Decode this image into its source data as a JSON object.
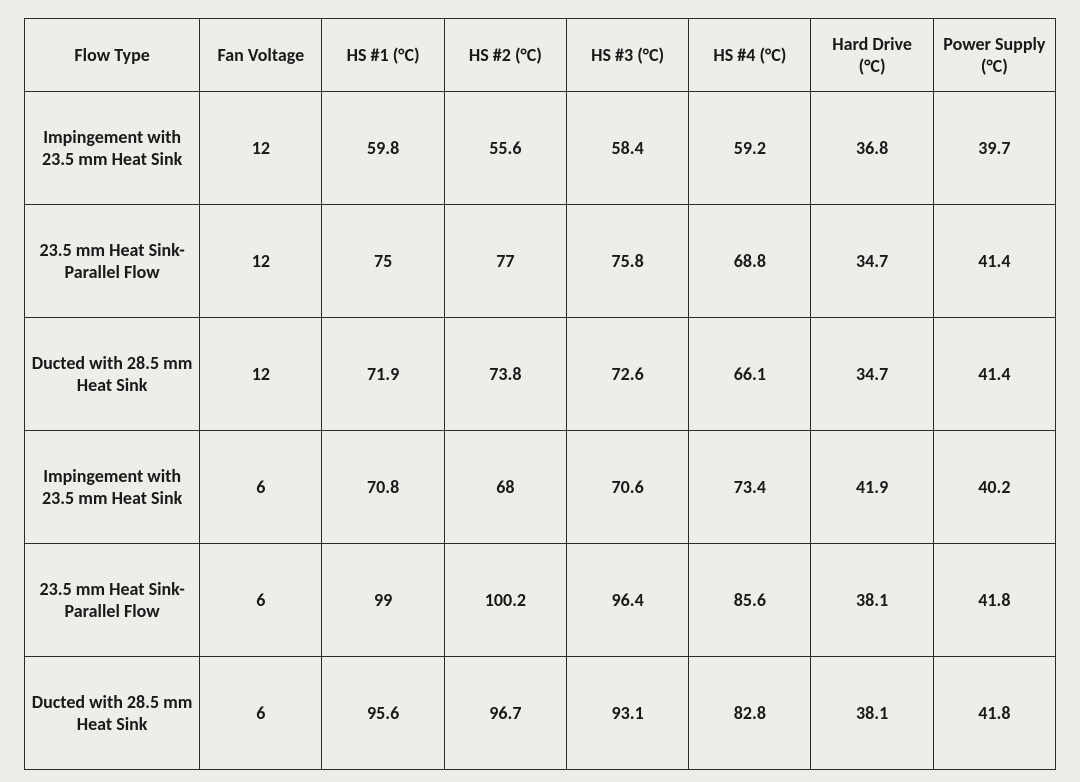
{
  "table": {
    "background_color": "#eeede9",
    "border_color": "#2b2b2b",
    "text_color": "#1a1a1a",
    "font_family": "Calibri",
    "header_fontsize": 18,
    "cell_fontsize": 18,
    "font_weight": "bold",
    "column_widths_pct": [
      17,
      11.86,
      11.86,
      11.86,
      11.86,
      11.86,
      11.86,
      11.86
    ],
    "columns": [
      "Flow Type",
      "Fan Voltage",
      "HS #1 (°C)",
      "HS #2 (°C)",
      "HS #3 (°C)",
      "HS #4 (°C)",
      "Hard Drive (°C)",
      "Power Supply (°C)"
    ],
    "rows": [
      {
        "flow": "Impingement with 23.5 mm Heat Sink",
        "v": "12",
        "hs1": "59.8",
        "hs2": "55.6",
        "hs3": "58.4",
        "hs4": "59.2",
        "hd": "36.8",
        "ps": "39.7"
      },
      {
        "flow": "23.5 mm Heat Sink-Parallel Flow",
        "v": "12",
        "hs1": "75",
        "hs2": "77",
        "hs3": "75.8",
        "hs4": "68.8",
        "hd": "34.7",
        "ps": "41.4"
      },
      {
        "flow": "Ducted with 28.5 mm Heat Sink",
        "v": "12",
        "hs1": "71.9",
        "hs2": "73.8",
        "hs3": "72.6",
        "hs4": "66.1",
        "hd": "34.7",
        "ps": "41.4"
      },
      {
        "flow": "Impingement with 23.5 mm Heat Sink",
        "v": "6",
        "hs1": "70.8",
        "hs2": "68",
        "hs3": "70.6",
        "hs4": "73.4",
        "hd": "41.9",
        "ps": "40.2"
      },
      {
        "flow": "23.5 mm Heat Sink-Parallel Flow",
        "v": "6",
        "hs1": "99",
        "hs2": "100.2",
        "hs3": "96.4",
        "hs4": "85.6",
        "hd": "38.1",
        "ps": "41.8"
      },
      {
        "flow": "Ducted with 28.5 mm Heat Sink",
        "v": "6",
        "hs1": "95.6",
        "hs2": "96.7",
        "hs3": "93.1",
        "hs4": "82.8",
        "hd": "38.1",
        "ps": "41.8"
      }
    ]
  }
}
